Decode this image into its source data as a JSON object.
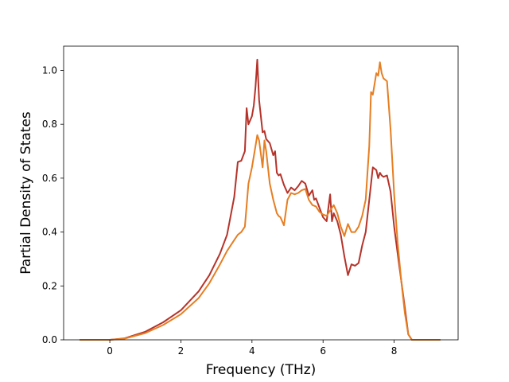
{
  "chart_data": {
    "type": "line",
    "title": "",
    "xlabel": "Frequency (THz)",
    "ylabel": "Partial Density of States",
    "xlim": [
      -1.3,
      9.8
    ],
    "ylim": [
      0.0,
      1.09
    ],
    "xticks": [
      0,
      2,
      4,
      6,
      8
    ],
    "yticks": [
      0.0,
      0.2,
      0.4,
      0.6,
      0.8,
      1.0
    ],
    "xtick_labels": [
      "0",
      "2",
      "4",
      "6",
      "8"
    ],
    "ytick_labels": [
      "0.0",
      "0.2",
      "0.4",
      "0.6",
      "0.8",
      "1.0"
    ],
    "grid": false,
    "legend": "none",
    "series": [
      {
        "color": "#b5332a",
        "x": [
          -0.85,
          0.0,
          0.4,
          1.0,
          1.5,
          2.0,
          2.5,
          2.8,
          3.1,
          3.3,
          3.5,
          3.6,
          3.7,
          3.8,
          3.85,
          3.9,
          4.0,
          4.05,
          4.1,
          4.15,
          4.2,
          4.3,
          4.35,
          4.4,
          4.5,
          4.6,
          4.65,
          4.7,
          4.75,
          4.8,
          4.9,
          5.0,
          5.1,
          5.2,
          5.3,
          5.4,
          5.5,
          5.6,
          5.7,
          5.75,
          5.8,
          5.9,
          6.0,
          6.1,
          6.2,
          6.25,
          6.3,
          6.4,
          6.5,
          6.6,
          6.7,
          6.8,
          6.9,
          7.0,
          7.1,
          7.2,
          7.3,
          7.4,
          7.5,
          7.55,
          7.6,
          7.65,
          7.7,
          7.8,
          7.9,
          8.0,
          8.1,
          8.2,
          8.3,
          8.4,
          8.5,
          9.3
        ],
        "y": [
          0.0,
          0.0,
          0.005,
          0.03,
          0.065,
          0.11,
          0.18,
          0.24,
          0.32,
          0.39,
          0.53,
          0.66,
          0.665,
          0.7,
          0.86,
          0.8,
          0.83,
          0.87,
          0.94,
          1.04,
          0.89,
          0.77,
          0.775,
          0.745,
          0.73,
          0.685,
          0.7,
          0.62,
          0.61,
          0.615,
          0.575,
          0.545,
          0.565,
          0.555,
          0.57,
          0.59,
          0.58,
          0.535,
          0.555,
          0.52,
          0.525,
          0.49,
          0.455,
          0.44,
          0.54,
          0.44,
          0.47,
          0.44,
          0.39,
          0.31,
          0.24,
          0.28,
          0.275,
          0.285,
          0.35,
          0.4,
          0.52,
          0.64,
          0.63,
          0.6,
          0.62,
          0.61,
          0.605,
          0.61,
          0.55,
          0.42,
          0.32,
          0.22,
          0.12,
          0.02,
          0.0,
          0.0
        ]
      },
      {
        "color": "#e67e22",
        "x": [
          -0.85,
          0.0,
          0.4,
          1.0,
          1.5,
          2.0,
          2.5,
          2.8,
          3.1,
          3.3,
          3.5,
          3.6,
          3.7,
          3.8,
          3.9,
          4.0,
          4.1,
          4.15,
          4.2,
          4.3,
          4.35,
          4.4,
          4.5,
          4.6,
          4.7,
          4.75,
          4.8,
          4.9,
          5.0,
          5.1,
          5.2,
          5.3,
          5.4,
          5.5,
          5.6,
          5.7,
          5.8,
          5.9,
          6.0,
          6.1,
          6.2,
          6.3,
          6.4,
          6.5,
          6.6,
          6.7,
          6.8,
          6.9,
          7.0,
          7.1,
          7.2,
          7.3,
          7.35,
          7.4,
          7.5,
          7.55,
          7.6,
          7.65,
          7.7,
          7.8,
          7.9,
          8.0,
          8.1,
          8.2,
          8.3,
          8.4,
          8.5,
          9.3
        ],
        "y": [
          0.0,
          0.0,
          0.004,
          0.025,
          0.055,
          0.095,
          0.155,
          0.21,
          0.28,
          0.33,
          0.37,
          0.39,
          0.4,
          0.42,
          0.58,
          0.64,
          0.72,
          0.76,
          0.74,
          0.64,
          0.74,
          0.7,
          0.58,
          0.52,
          0.47,
          0.46,
          0.455,
          0.425,
          0.52,
          0.545,
          0.54,
          0.545,
          0.555,
          0.56,
          0.52,
          0.5,
          0.495,
          0.475,
          0.465,
          0.46,
          0.48,
          0.5,
          0.47,
          0.42,
          0.385,
          0.43,
          0.4,
          0.4,
          0.42,
          0.46,
          0.52,
          0.72,
          0.92,
          0.91,
          0.99,
          0.98,
          1.03,
          0.99,
          0.97,
          0.96,
          0.78,
          0.54,
          0.36,
          0.22,
          0.1,
          0.02,
          0.0,
          0.0
        ]
      }
    ]
  }
}
